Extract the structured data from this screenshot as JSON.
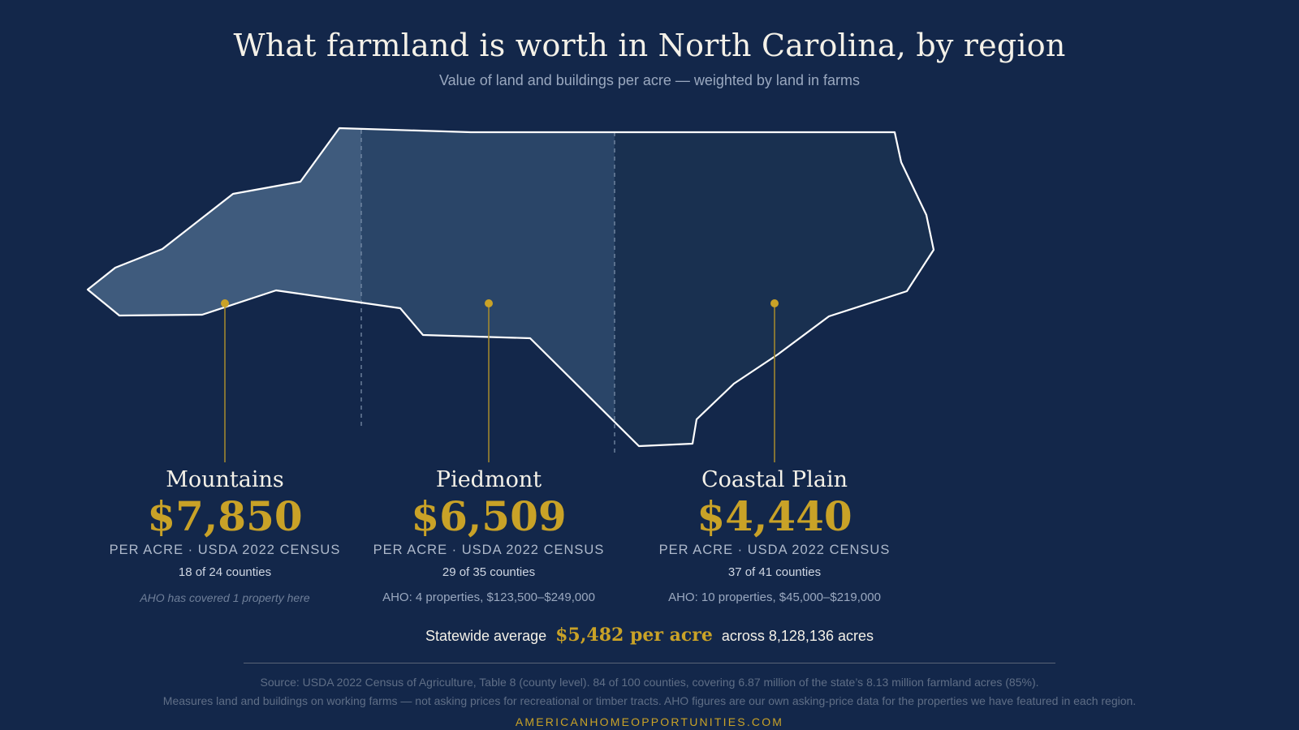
{
  "header": {
    "title": "What farmland is worth in North Carolina, by region",
    "subtitle": "Value of land and buildings per acre — weighted by land in farms"
  },
  "colors": {
    "background": "#13274a",
    "mountains_fill": "#3f5b7d",
    "piedmont_fill": "#2a4568",
    "coastal_fill": "#193050",
    "accent_gold": "#c9a227",
    "outline": "#ffffff"
  },
  "regions": [
    {
      "name": "Mountains",
      "value": "$7,850",
      "unit": "PER ACRE · USDA 2022 CENSUS",
      "counties": "18 of 24 counties",
      "aho": "AHO has covered 1 property here"
    },
    {
      "name": "Piedmont",
      "value": "$6,509",
      "unit": "PER ACRE · USDA 2022 CENSUS",
      "counties": "29 of 35 counties",
      "aho": "AHO: 4 properties, $123,500–$249,000"
    },
    {
      "name": "Coastal Plain",
      "value": "$4,440",
      "unit": "PER ACRE · USDA 2022 CENSUS",
      "counties": "37 of 41 counties",
      "aho": "AHO: 10 properties, $45,000–$219,000"
    }
  ],
  "statewide": {
    "prefix": "Statewide average",
    "value": "$5,482 per acre",
    "suffix": "across 8,128,136 acres"
  },
  "source": {
    "line1": "Source: USDA 2022 Census of Agriculture, Table 8 (county level). 84 of 100 counties, covering 6.87 million of the state’s 8.13 million farmland acres (85%).",
    "line2": "Measures land and buildings on working farms — not asking prices for recreational or timber tracts. AHO figures are our own asking-price data for the properties we have featured in each region."
  },
  "footer": {
    "site": "AMERICANHOMEOPPORTUNITIES.COM"
  }
}
